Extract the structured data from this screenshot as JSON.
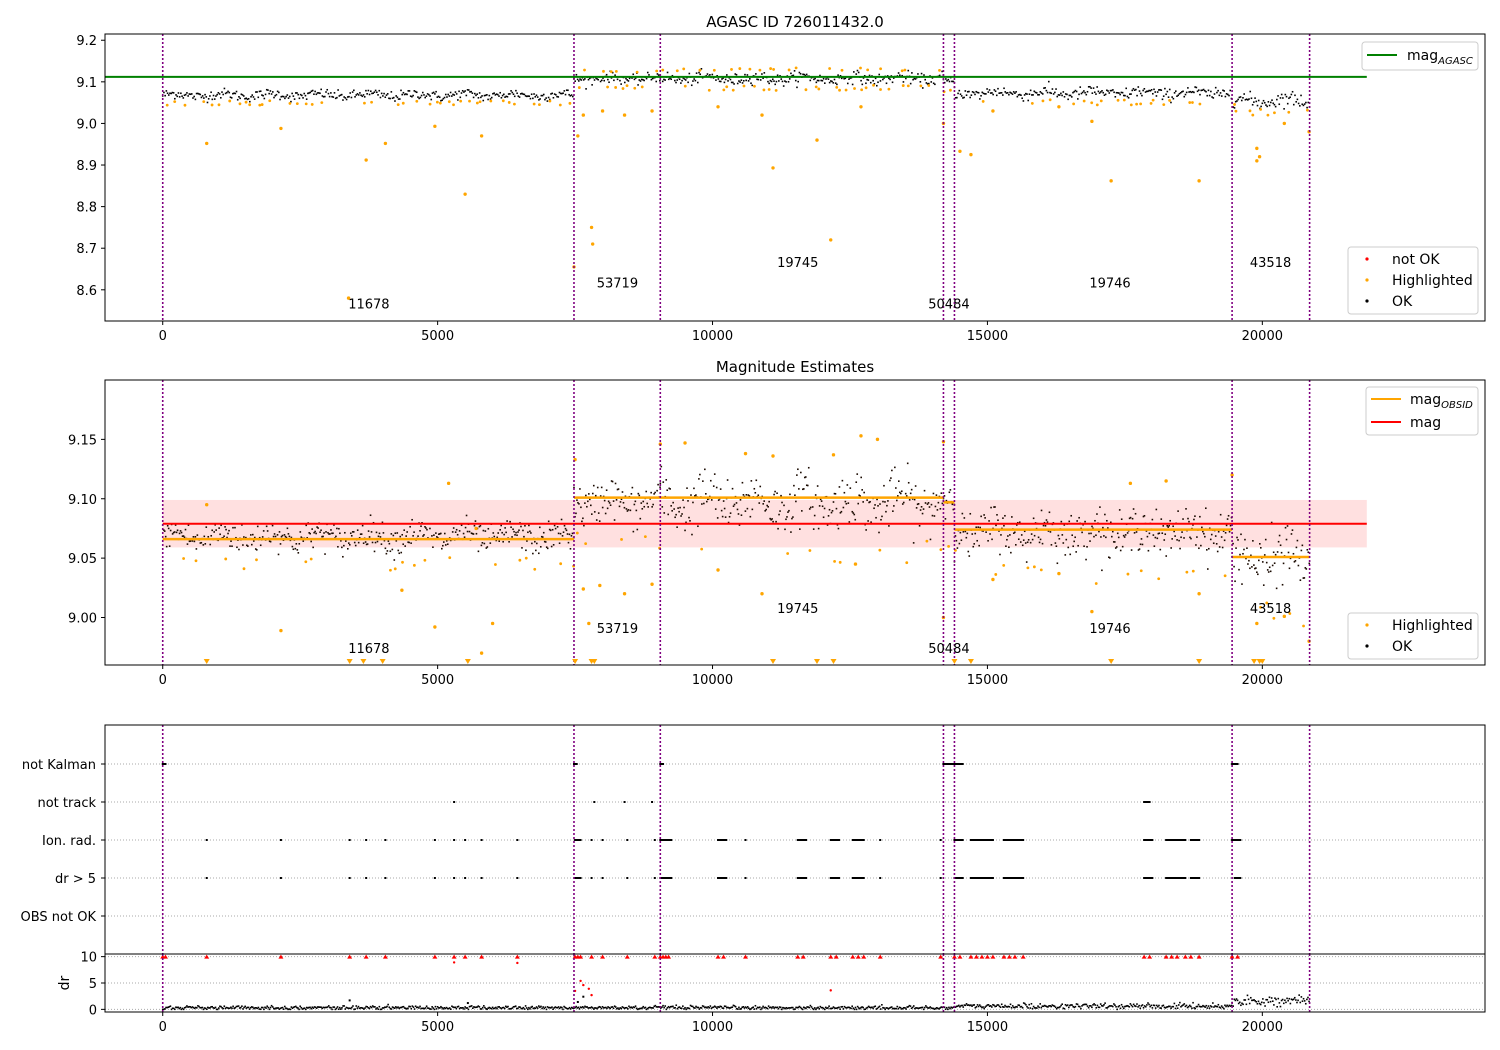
{
  "figure": {
    "panel1_title": "AGASC ID 726011432.0",
    "panel2_title": "Magnitude Estimates"
  },
  "chart_data": [
    {
      "type": "scatter",
      "title": "AGASC ID 726011432.0",
      "xlabel": "",
      "ylabel": "",
      "xlim": [
        -1050,
        24050
      ],
      "ylim": [
        8.525,
        9.215
      ],
      "x_ticks": [
        0,
        5000,
        10000,
        15000,
        20000
      ],
      "y_ticks": [
        8.6,
        8.7,
        8.8,
        8.9,
        9.0,
        9.1,
        9.2
      ],
      "y_tick_labels": [
        "8.6",
        "8.7",
        "8.8",
        "8.9",
        "9.0",
        "9.1",
        "9.2"
      ],
      "obsid_boundaries": [
        0,
        7480,
        9050,
        14200,
        14400,
        19450,
        20860
      ],
      "obsid_labels": [
        {
          "text": "11678",
          "x": 3750,
          "y": 8.555
        },
        {
          "text": "53719",
          "x": 8270,
          "y": 8.605
        },
        {
          "text": "19745",
          "x": 11550,
          "y": 8.655
        },
        {
          "text": "50484",
          "x": 14300,
          "y": 8.555
        },
        {
          "text": "19746",
          "x": 17230,
          "y": 8.605
        },
        {
          "text": "43518",
          "x": 20150,
          "y": 8.655
        }
      ],
      "reference_lines": [
        {
          "name": "mag_AGASC",
          "y": 9.112,
          "x_range": [
            -1050,
            21900
          ],
          "color": "#008000"
        }
      ],
      "ok_bands": [
        {
          "x": [
            0,
            7480
          ],
          "center": 9.068,
          "spread": 0.011
        },
        {
          "x": [
            7480,
            9050
          ],
          "center": 9.108,
          "spread": 0.011
        },
        {
          "x": [
            9050,
            14200
          ],
          "center": 9.108,
          "spread": 0.013
        },
        {
          "x": [
            14200,
            14400
          ],
          "center": 9.098,
          "spread": 0.01
        },
        {
          "x": [
            14400,
            19450
          ],
          "center": 9.073,
          "spread": 0.013
        },
        {
          "x": [
            19450,
            20860
          ],
          "center": 9.055,
          "spread": 0.016
        }
      ],
      "highlighted_points": [
        [
          800,
          8.952
        ],
        [
          2150,
          8.988
        ],
        [
          3380,
          8.58
        ],
        [
          3700,
          8.912
        ],
        [
          4050,
          8.952
        ],
        [
          4950,
          8.993
        ],
        [
          5500,
          8.83
        ],
        [
          5800,
          8.97
        ],
        [
          7480,
          8.655
        ],
        [
          7550,
          8.97
        ],
        [
          7650,
          9.02
        ],
        [
          7800,
          8.75
        ],
        [
          7820,
          8.71
        ],
        [
          8000,
          9.03
        ],
        [
          8400,
          9.02
        ],
        [
          8900,
          9.03
        ],
        [
          10100,
          9.04
        ],
        [
          10900,
          9.02
        ],
        [
          11100,
          8.893
        ],
        [
          11900,
          8.96
        ],
        [
          12150,
          8.72
        ],
        [
          12700,
          9.04
        ],
        [
          14200,
          9.0
        ],
        [
          14500,
          8.933
        ],
        [
          14700,
          8.925
        ],
        [
          15100,
          9.03
        ],
        [
          16300,
          9.04
        ],
        [
          16900,
          9.005
        ],
        [
          17250,
          8.862
        ],
        [
          18850,
          8.862
        ],
        [
          19900,
          8.94
        ],
        [
          19950,
          8.92
        ],
        [
          19900,
          8.91
        ],
        [
          20400,
          9.0
        ],
        [
          20850,
          8.98
        ]
      ],
      "series": [
        {
          "name": "not OK",
          "color": "#ff0000",
          "marker": "dot"
        },
        {
          "name": "Highlighted",
          "color": "#ffa500",
          "marker": "dot"
        },
        {
          "name": "OK",
          "color": "#000000",
          "marker": "dot"
        }
      ],
      "legend_lines": [
        {
          "label": "mag",
          "sub": "AGASC",
          "color": "#008000"
        }
      ],
      "legend_placement": [
        "top-right",
        "bottom-right"
      ]
    },
    {
      "type": "scatter",
      "title": "Magnitude Estimates",
      "xlabel": "",
      "ylabel": "",
      "xlim": [
        -1050,
        24050
      ],
      "ylim": [
        8.96,
        9.2
      ],
      "x_ticks": [
        0,
        5000,
        10000,
        15000,
        20000
      ],
      "y_ticks": [
        9.0,
        9.05,
        9.1,
        9.15
      ],
      "y_tick_labels": [
        "9.00",
        "9.05",
        "9.10",
        "9.15"
      ],
      "obsid_boundaries": [
        0,
        7480,
        9050,
        14200,
        14400,
        19450,
        20860
      ],
      "obsid_labels": [
        {
          "text": "11678",
          "x": 3750,
          "y": 8.97
        },
        {
          "text": "53719",
          "x": 8270,
          "y": 8.987
        },
        {
          "text": "19745",
          "x": 11550,
          "y": 9.004
        },
        {
          "text": "50484",
          "x": 14300,
          "y": 8.97
        },
        {
          "text": "19746",
          "x": 17230,
          "y": 8.987
        },
        {
          "text": "43518",
          "x": 20150,
          "y": 9.004
        }
      ],
      "mag": 9.079,
      "mag_band": [
        9.059,
        9.099
      ],
      "mag_obsid_segments": [
        {
          "x": [
            0,
            7480
          ],
          "y": 9.066
        },
        {
          "x": [
            7480,
            14200
          ],
          "y": 9.101
        },
        {
          "x": [
            14200,
            14400
          ],
          "y": 9.097
        },
        {
          "x": [
            14400,
            19450
          ],
          "y": 9.074
        },
        {
          "x": [
            19450,
            20860
          ],
          "y": 9.051
        }
      ],
      "ok_bands": [
        {
          "x": [
            0,
            7480
          ],
          "center": 9.068,
          "spread": 0.011
        },
        {
          "x": [
            7480,
            9050
          ],
          "center": 9.097,
          "spread": 0.016
        },
        {
          "x": [
            9050,
            14200
          ],
          "center": 9.097,
          "spread": 0.02
        },
        {
          "x": [
            14200,
            14400
          ],
          "center": 9.095,
          "spread": 0.015
        },
        {
          "x": [
            14400,
            19450
          ],
          "center": 9.072,
          "spread": 0.017
        },
        {
          "x": [
            19450,
            20860
          ],
          "center": 9.05,
          "spread": 0.022
        }
      ],
      "highlighted_points": [
        [
          800,
          9.095
        ],
        [
          2150,
          8.989
        ],
        [
          4350,
          9.023
        ],
        [
          4950,
          8.992
        ],
        [
          5200,
          9.113
        ],
        [
          5700,
          9.075
        ],
        [
          6000,
          8.995
        ],
        [
          5800,
          8.97
        ],
        [
          7500,
          9.133
        ],
        [
          7650,
          9.024
        ],
        [
          7750,
          8.995
        ],
        [
          7950,
          9.027
        ],
        [
          8400,
          9.02
        ],
        [
          8900,
          9.028
        ],
        [
          9050,
          9.146
        ],
        [
          9500,
          9.147
        ],
        [
          10100,
          9.04
        ],
        [
          10600,
          9.138
        ],
        [
          10900,
          9.02
        ],
        [
          11100,
          9.136
        ],
        [
          12200,
          9.137
        ],
        [
          12600,
          9.045
        ],
        [
          12700,
          9.153
        ],
        [
          13000,
          9.15
        ],
        [
          14200,
          9.148
        ],
        [
          14200,
          9.0
        ],
        [
          15100,
          9.032
        ],
        [
          16300,
          9.037
        ],
        [
          16900,
          9.005
        ],
        [
          17600,
          9.113
        ],
        [
          18250,
          9.115
        ],
        [
          18850,
          9.02
        ],
        [
          19450,
          9.12
        ],
        [
          19900,
          8.995
        ],
        [
          20400,
          9.001
        ],
        [
          20850,
          8.98
        ]
      ],
      "clipped_markers_x": [
        800,
        3400,
        3650,
        4000,
        5550,
        7500,
        7800,
        7850,
        11100,
        11900,
        12200,
        14400,
        14700,
        17250,
        18850,
        19850,
        19950,
        20000
      ],
      "series": [
        {
          "name": "Highlighted",
          "color": "#ffa500",
          "marker": "dot"
        },
        {
          "name": "OK",
          "color": "#000000",
          "marker": "dot"
        }
      ],
      "legend_lines": [
        {
          "label": "mag",
          "sub": "OBSID",
          "color": "#ffa500"
        },
        {
          "label": "mag",
          "sub": "",
          "color": "#ff0000"
        }
      ],
      "legend_placement": [
        "top-right",
        "bottom-right"
      ]
    },
    {
      "type": "scatter",
      "title": "",
      "xlabel": "",
      "ylabel": "",
      "xlim": [
        -1050,
        24050
      ],
      "y_categories": [
        "not Kalman",
        "not track",
        "Ion. rad.",
        "dr > 5",
        "OBS not OK"
      ],
      "obsid_boundaries": [
        0,
        7480,
        9050,
        14200,
        14400,
        19450,
        20860
      ],
      "flags": {
        "not Kalman": [
          [
            0,
            50
          ],
          [
            7480,
            7550
          ],
          [
            9050,
            9120
          ],
          [
            14200,
            14550
          ],
          [
            19450,
            19550
          ]
        ],
        "not track": [
          [
            5300
          ],
          [
            7850
          ],
          [
            8400
          ],
          [
            8900
          ],
          [
            17850,
            17950
          ]
        ],
        "Ion. rad.": [
          [
            800
          ],
          [
            2150
          ],
          [
            3400
          ],
          [
            3700
          ],
          [
            4050
          ],
          [
            4950
          ],
          [
            5300
          ],
          [
            5500
          ],
          [
            5800
          ],
          [
            6450
          ],
          [
            7500,
            7600
          ],
          [
            7800
          ],
          [
            8000
          ],
          [
            8450
          ],
          [
            8950
          ],
          [
            9050,
            9250
          ],
          [
            10100,
            10250
          ],
          [
            10600
          ],
          [
            11550,
            11700
          ],
          [
            12150,
            12300
          ],
          [
            12550,
            12750
          ],
          [
            13050
          ],
          [
            14150
          ],
          [
            14400,
            14550
          ],
          [
            14700,
            15100
          ],
          [
            15300,
            15650
          ],
          [
            17850,
            18000
          ],
          [
            18250,
            18600
          ],
          [
            18700,
            18850
          ],
          [
            19450,
            19600
          ]
        ],
        "dr > 5": [
          [
            800
          ],
          [
            2150
          ],
          [
            3400
          ],
          [
            3700
          ],
          [
            4050
          ],
          [
            4950
          ],
          [
            5300
          ],
          [
            5500
          ],
          [
            5800
          ],
          [
            6450
          ],
          [
            7500,
            7600
          ],
          [
            7800
          ],
          [
            8000
          ],
          [
            8450
          ],
          [
            8950
          ],
          [
            9050,
            9250
          ],
          [
            10100,
            10250
          ],
          [
            10600
          ],
          [
            11550,
            11700
          ],
          [
            12150,
            12300
          ],
          [
            12550,
            12750
          ],
          [
            13050
          ],
          [
            14150
          ],
          [
            14400,
            14550
          ],
          [
            14700,
            15100
          ],
          [
            15300,
            15650
          ],
          [
            17850,
            18000
          ],
          [
            18250,
            18600
          ],
          [
            18700,
            18850
          ],
          [
            19500,
            19600
          ]
        ],
        "OBS not OK": []
      }
    },
    {
      "type": "scatter",
      "title": "",
      "xlabel": "",
      "ylabel": "dr",
      "xlim": [
        -1050,
        24050
      ],
      "ylim": [
        -0.5,
        10.5
      ],
      "y_ticks": [
        0,
        5,
        10
      ],
      "y_tick_labels": [
        "0",
        "5",
        "10"
      ],
      "obsid_boundaries": [
        0,
        7480,
        9050,
        14200,
        14400,
        19450,
        20860
      ],
      "ok_bands": [
        {
          "x": [
            0,
            14400
          ],
          "center": 0.3,
          "spread": 0.3
        },
        {
          "x": [
            14400,
            19450
          ],
          "center": 0.6,
          "spread": 0.4
        },
        {
          "x": [
            19450,
            20860
          ],
          "center": 1.6,
          "spread": 0.7
        }
      ],
      "clipped_red_x": [
        0,
        50,
        800,
        2150,
        3400,
        3700,
        4050,
        4950,
        5300,
        5500,
        5800,
        6450,
        7500,
        7550,
        7600,
        7800,
        8000,
        8450,
        8950,
        9050,
        9100,
        9150,
        9200,
        10100,
        10200,
        10600,
        11550,
        11650,
        12150,
        12250,
        12550,
        12650,
        12750,
        13050,
        14150,
        14400,
        14500,
        14700,
        14800,
        14900,
        15000,
        15100,
        15300,
        15400,
        15500,
        15650,
        17850,
        17950,
        18250,
        18350,
        18450,
        18600,
        18700,
        18850,
        19450,
        19550
      ],
      "red_points": [
        [
          7500,
          3.5
        ],
        [
          7600,
          5.4
        ],
        [
          7650,
          4.6
        ],
        [
          7750,
          3.9
        ],
        [
          7800,
          2.7
        ],
        [
          12150,
          3.6
        ],
        [
          5300,
          8.9
        ],
        [
          6450,
          8.8
        ]
      ],
      "black_outliers": [
        [
          3400,
          1.7
        ],
        [
          5550,
          1.2
        ],
        [
          7550,
          1.4
        ],
        [
          7650,
          2.4
        ]
      ]
    }
  ]
}
